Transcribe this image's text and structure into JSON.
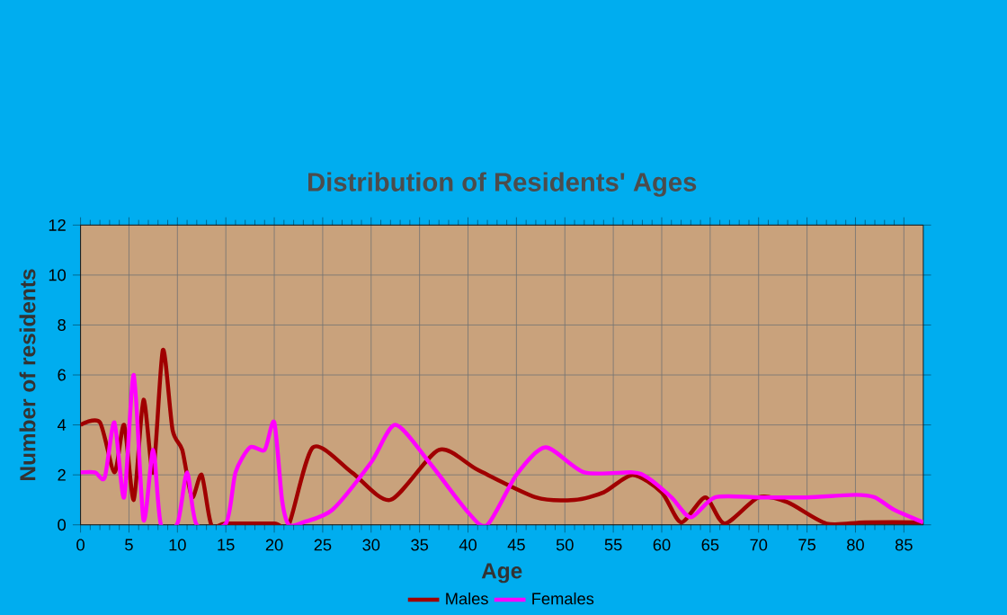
{
  "chart_data": {
    "type": "line",
    "title": "Distribution of Residents' Ages",
    "xlabel": "Age",
    "ylabel": "Number of residents",
    "xlim": [
      0,
      87
    ],
    "ylim": [
      0,
      12
    ],
    "xticks": [
      0,
      5,
      10,
      15,
      20,
      25,
      30,
      35,
      40,
      45,
      50,
      55,
      60,
      65,
      70,
      75,
      80,
      85
    ],
    "yticks": [
      0,
      2,
      4,
      6,
      8,
      10,
      12
    ],
    "grid": true,
    "legend": "bottom",
    "marker": "none",
    "line_style": "solid",
    "series": [
      {
        "name": "Males",
        "color": "#a00000",
        "x": [
          0,
          2,
          3.5,
          4.5,
          5.5,
          6.5,
          7.5,
          8.5,
          9.5,
          10.5,
          11.5,
          12.5,
          13.5,
          15,
          20,
          21.5,
          24,
          28,
          32,
          37,
          41,
          47,
          51,
          54,
          57,
          60,
          62,
          64.5,
          66.5,
          70,
          73,
          77,
          81,
          87
        ],
        "values": [
          4,
          4.1,
          2.1,
          4,
          1,
          5,
          2.1,
          7,
          3.8,
          3,
          1.1,
          2,
          0,
          0.05,
          0.05,
          0,
          3.1,
          2.1,
          1,
          3,
          2.2,
          1.1,
          1,
          1.3,
          2,
          1.3,
          0.1,
          1.1,
          0.05,
          1.1,
          0.9,
          0.05,
          0.1,
          0.1
        ]
      },
      {
        "name": "Females",
        "color": "#ff00ff",
        "x": [
          0,
          1.5,
          2.5,
          3.5,
          4.5,
          5.5,
          6.5,
          7.5,
          8.3,
          10,
          11,
          12,
          15,
          16,
          17.5,
          19,
          20,
          20.8,
          21.5,
          23,
          26,
          30,
          32.5,
          36,
          40,
          42,
          45,
          48,
          52,
          57,
          58.5,
          61,
          63,
          65.5,
          70,
          75,
          80,
          82,
          84,
          87
        ],
        "values": [
          2.1,
          2.1,
          1.9,
          4.1,
          1.1,
          6,
          0.2,
          3,
          0,
          0.05,
          2.1,
          0,
          0.05,
          2.1,
          3.1,
          3,
          4.1,
          1,
          0,
          0.1,
          0.6,
          2.5,
          4,
          2.5,
          0.5,
          0,
          2,
          3.1,
          2.1,
          2.1,
          1.9,
          1.1,
          0.3,
          1.1,
          1.1,
          1.1,
          1.2,
          1.1,
          0.6,
          0.1
        ]
      }
    ]
  }
}
